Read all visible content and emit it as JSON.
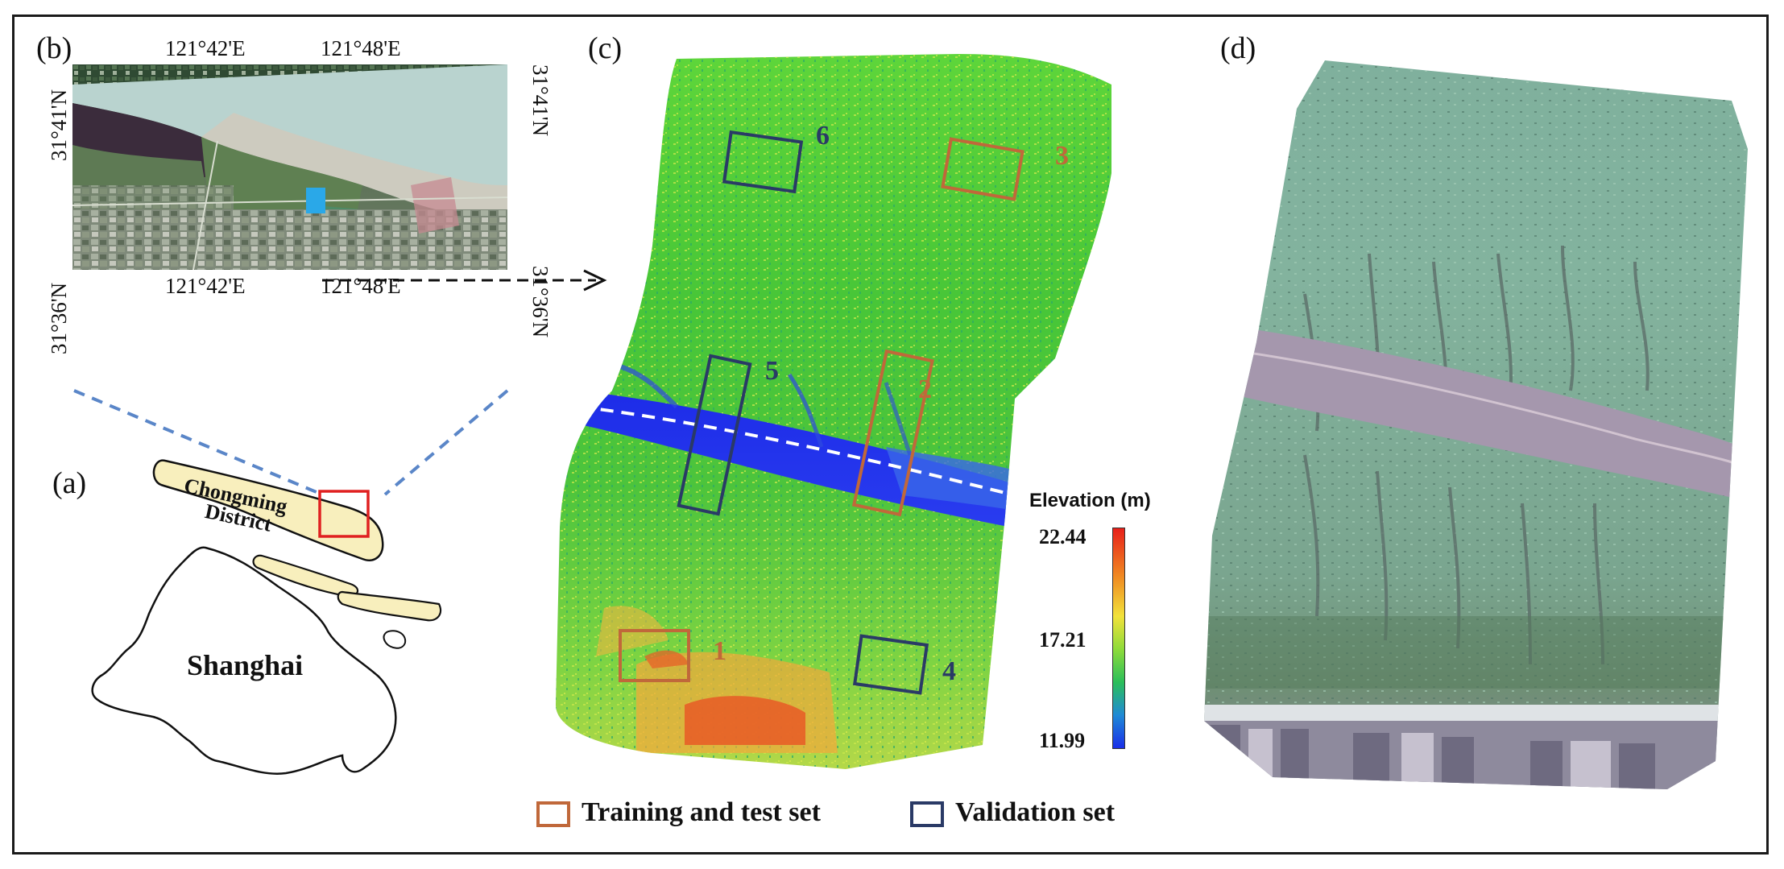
{
  "panels": {
    "b": {
      "label": "(b)",
      "top_lon": [
        "121°42'E",
        "121°48'E"
      ],
      "bottom_lon": [
        "121°42'E",
        "121°48'E"
      ],
      "left_lat": [
        "31°41'N",
        "31°36'N"
      ],
      "right_lat": [
        "31°41'N",
        "31°36'N"
      ]
    },
    "a": {
      "label": "(a)",
      "district": [
        "Chongming",
        "District"
      ],
      "city": "Shanghai"
    },
    "c": {
      "label": "(c)",
      "boxes": [
        "1",
        "2",
        "3",
        "4",
        "5",
        "6"
      ],
      "colorbar": {
        "title": "Elevation (m)",
        "max": "22.44",
        "mid": "17.21",
        "min": "11.99"
      }
    },
    "d": {
      "label": "(d)"
    }
  },
  "legend": {
    "training": {
      "label": "Training and test set",
      "color": "#c0683a"
    },
    "validation": {
      "label": "Validation set",
      "color": "#2a3a66"
    }
  },
  "colors": {
    "highlight_red": "#e02020",
    "region_fill": "#f8efbd",
    "study_site": "#2aa8e8",
    "dash_blue": "#5a86c8"
  }
}
